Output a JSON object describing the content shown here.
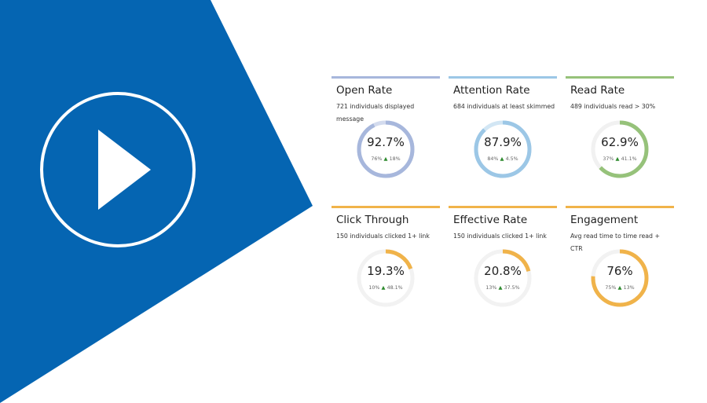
{
  "hero": {
    "background_color": "#ffffff",
    "panel_color": "#0565B2",
    "play_icon": "play-circle-icon"
  },
  "cards": [
    {
      "title": "Open Rate",
      "subtitle": "721 individuals displayed message",
      "value": "92.7%",
      "previous": "76%",
      "change": "18%",
      "change_icon": "triangle-up-icon",
      "gauge_fraction": 0.927,
      "color": "#A7B7DC",
      "track": "#D3DBEE"
    },
    {
      "title": "Attention Rate",
      "subtitle": "684 individuals at least skimmed",
      "value": "87.9%",
      "previous": "84%",
      "change": "4.5%",
      "change_icon": "triangle-up-icon",
      "gauge_fraction": 0.879,
      "color": "#9CC7E6",
      "track": "#D2E6F4"
    },
    {
      "title": "Read Rate",
      "subtitle": "489 individuals read > 30%",
      "value": "62.9%",
      "previous": "37%",
      "change": "41.1%",
      "change_icon": "triangle-up-icon",
      "gauge_fraction": 0.629,
      "color": "#96C27A",
      "track": "#F1F1F1"
    },
    {
      "title": "Click Through",
      "subtitle": "150 individuals clicked 1+ link",
      "value": "19.3%",
      "previous": "10%",
      "change": "48.1%",
      "change_icon": "triangle-up-icon",
      "gauge_fraction": 0.193,
      "color": "#F0B34A",
      "track": "#F2F2F2"
    },
    {
      "title": "Effective Rate",
      "subtitle": "150 individuals clicked 1+ link",
      "value": "20.8%",
      "previous": "13%",
      "change": "37.5%",
      "change_icon": "triangle-up-icon",
      "gauge_fraction": 0.208,
      "color": "#F0B34A",
      "track": "#F2F2F2"
    },
    {
      "title": "Engagement",
      "subtitle": "Avg read time to time read + CTR",
      "value": "76%",
      "previous": "75%",
      "change": "13%",
      "change_icon": "triangle-up-icon",
      "gauge_fraction": 0.76,
      "color": "#F0B34A",
      "track": "#F2F2F2"
    }
  ]
}
